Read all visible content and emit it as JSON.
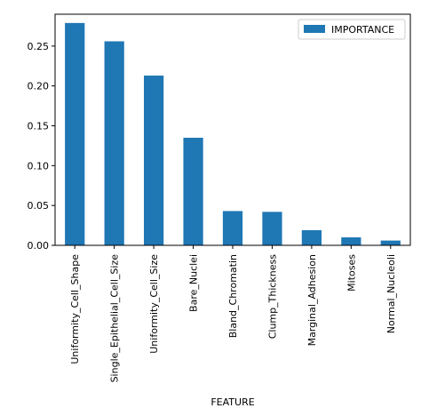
{
  "chart_data": {
    "type": "bar",
    "categories": [
      "Uniformity_Cell_Shape",
      "Single_Epithelial_Cell_Size",
      "Uniformity_Cell_Size",
      "Bare_Nuclei",
      "Bland_Chromatin",
      "Clump_Thickness",
      "Marginal_Adhesion",
      "Mitoses",
      "Normal_Nucleoli"
    ],
    "series": [
      {
        "name": "IMPORTANCE",
        "values": [
          0.279,
          0.256,
          0.213,
          0.135,
          0.043,
          0.042,
          0.019,
          0.01,
          0.006
        ],
        "color": "#1f77b4"
      }
    ],
    "xlabel": "FEATURE",
    "ylabel": "",
    "ylim": [
      0,
      0.29
    ],
    "yticks": [
      0.0,
      0.05,
      0.1,
      0.15,
      0.2,
      0.25
    ],
    "ytick_labels": [
      "0.00",
      "0.05",
      "0.10",
      "0.15",
      "0.20",
      "0.25"
    ],
    "legend_position": "top-right",
    "grid": false
  }
}
